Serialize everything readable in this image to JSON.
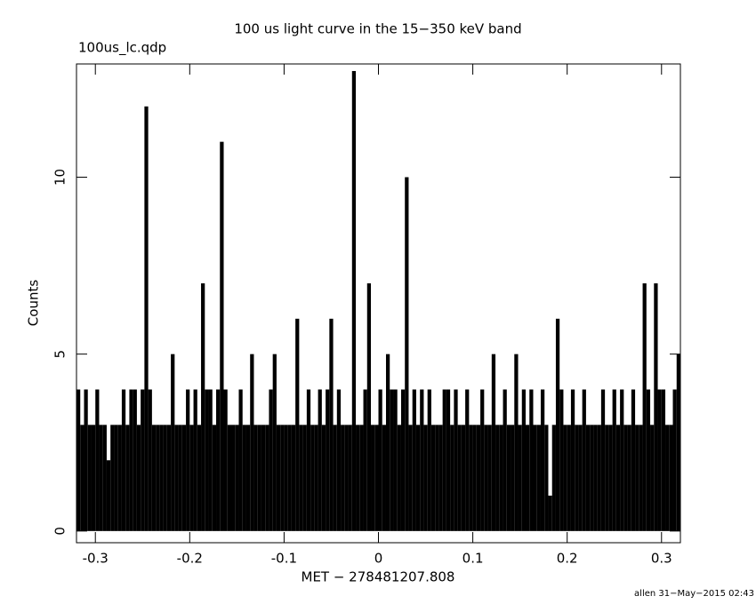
{
  "chart_data": {
    "type": "histogram",
    "title": "100 us light curve in the 15−350 keV band",
    "annotations": [
      "100us_lc.qdp",
      "allen 31−May−2015 02:43"
    ],
    "x_label": "MET − 278481207.808",
    "y_label": "Counts",
    "color": "#000000",
    "xlim": [
      -0.32,
      0.32
    ],
    "ylim": [
      -0.33,
      13.2
    ],
    "xticks": [
      -0.3,
      -0.2,
      -0.1,
      0,
      0.1,
      0.2,
      0.3
    ],
    "yticks": [
      0,
      5,
      10
    ],
    "bins": [
      -0.32,
      -0.316,
      -0.312,
      -0.308,
      -0.304,
      -0.3,
      -0.296,
      -0.292,
      -0.288,
      -0.284,
      -0.28,
      -0.276,
      -0.272,
      -0.268,
      -0.264,
      -0.26,
      -0.256,
      -0.252,
      -0.248,
      -0.244,
      -0.24,
      -0.236,
      -0.232,
      -0.228,
      -0.224,
      -0.22,
      -0.216,
      -0.212,
      -0.208,
      -0.204,
      -0.2,
      -0.196,
      -0.192,
      -0.188,
      -0.184,
      -0.18,
      -0.176,
      -0.172,
      -0.168,
      -0.164,
      -0.16,
      -0.156,
      -0.152,
      -0.148,
      -0.144,
      -0.14,
      -0.136,
      -0.132,
      -0.128,
      -0.124,
      -0.12,
      -0.116,
      -0.112,
      -0.108,
      -0.104,
      -0.1,
      -0.096,
      -0.092,
      -0.088,
      -0.084,
      -0.08,
      -0.076,
      -0.072,
      -0.068,
      -0.064,
      -0.06,
      -0.056,
      -0.052,
      -0.048,
      -0.044,
      -0.04,
      -0.036,
      -0.032,
      -0.028,
      -0.024,
      -0.02,
      -0.016,
      -0.012,
      -0.008,
      -0.004,
      0,
      0.004,
      0.008,
      0.012,
      0.016,
      0.02,
      0.024,
      0.028,
      0.032,
      0.036,
      0.04,
      0.044,
      0.048,
      0.052,
      0.056,
      0.06,
      0.064,
      0.068,
      0.072,
      0.076,
      0.08,
      0.084,
      0.088,
      0.092,
      0.096,
      0.1,
      0.104,
      0.108,
      0.112,
      0.116,
      0.12,
      0.124,
      0.128,
      0.132,
      0.136,
      0.14,
      0.144,
      0.148,
      0.152,
      0.156,
      0.16,
      0.164,
      0.168,
      0.172,
      0.176,
      0.18,
      0.184,
      0.188,
      0.192,
      0.196,
      0.2,
      0.204,
      0.208,
      0.212,
      0.216,
      0.22,
      0.224,
      0.228,
      0.232,
      0.236,
      0.24,
      0.244,
      0.248,
      0.252,
      0.256,
      0.26,
      0.264,
      0.268,
      0.272,
      0.276,
      0.28,
      0.284,
      0.288,
      0.292,
      0.296,
      0.3,
      0.304,
      0.308,
      0.312,
      0.316,
      0.32
    ],
    "values": [
      4,
      3,
      4,
      3,
      3,
      4,
      3,
      3,
      2,
      3,
      3,
      3,
      4,
      3,
      4,
      4,
      3,
      4,
      12,
      4,
      3,
      3,
      3,
      3,
      3,
      5,
      3,
      3,
      3,
      4,
      3,
      4,
      3,
      7,
      4,
      4,
      3,
      4,
      11,
      4,
      3,
      3,
      3,
      4,
      3,
      3,
      5,
      3,
      3,
      3,
      3,
      4,
      5,
      3,
      3,
      3,
      3,
      3,
      6,
      3,
      3,
      4,
      3,
      3,
      4,
      3,
      4,
      6,
      3,
      4,
      3,
      3,
      3,
      13,
      3,
      3,
      4,
      7,
      3,
      3,
      4,
      3,
      5,
      4,
      4,
      3,
      4,
      10,
      3,
      4,
      3,
      4,
      3,
      4,
      3,
      3,
      3,
      4,
      4,
      3,
      4,
      3,
      3,
      4,
      3,
      3,
      3,
      4,
      3,
      3,
      5,
      3,
      3,
      4,
      3,
      3,
      5,
      3,
      4,
      3,
      4,
      3,
      3,
      4,
      3,
      1,
      3,
      6,
      4,
      3,
      3,
      4,
      3,
      3,
      4,
      3,
      3,
      3,
      3,
      4,
      3,
      3,
      4,
      3,
      4,
      3,
      3,
      4,
      3,
      3,
      7,
      4,
      3,
      7,
      4,
      4,
      3,
      3,
      4,
      5
    ]
  }
}
